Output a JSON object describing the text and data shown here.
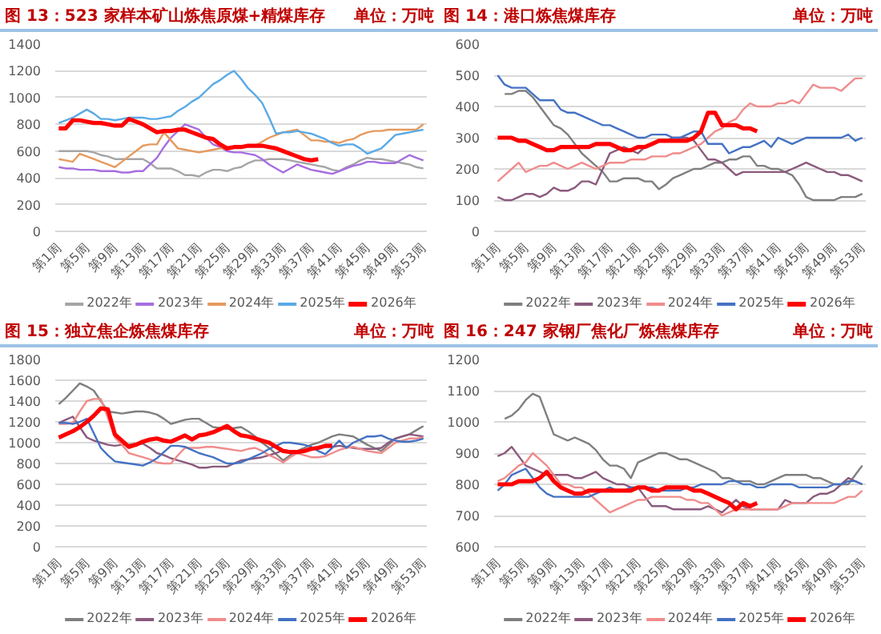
{
  "chart_data": [
    {
      "type": "line",
      "title": "图 13：523 家样本矿山炼焦原煤+精煤库存",
      "subtitle": "单位：万吨",
      "grid": "y",
      "legend": "bottom",
      "ylim": [
        0,
        1400
      ],
      "yticks": [
        0,
        200,
        400,
        600,
        800,
        1000,
        1200,
        1400
      ],
      "categories": [
        "第1周",
        null,
        null,
        null,
        "第5周",
        null,
        null,
        null,
        "第9周",
        null,
        null,
        null,
        "第13周",
        null,
        null,
        null,
        "第17周",
        null,
        null,
        null,
        "第21周",
        null,
        null,
        null,
        "第25周",
        null,
        null,
        null,
        "第29周",
        null,
        null,
        null,
        "第33周",
        null,
        null,
        null,
        "第37周",
        null,
        null,
        null,
        "第41周",
        null,
        null,
        null,
        "第45周",
        null,
        null,
        null,
        "第49周",
        null,
        null,
        null,
        "第53周"
      ],
      "series": [
        {
          "name": "2022年",
          "color": "#a5a5a5",
          "values": [
            600,
            600,
            600,
            600,
            600,
            590,
            570,
            560,
            540,
            540,
            540,
            540,
            540,
            510,
            470,
            470,
            470,
            450,
            420,
            420,
            410,
            440,
            460,
            460,
            450,
            470,
            480,
            510,
            530,
            530,
            540,
            540,
            540,
            530,
            520,
            510,
            500,
            490,
            480,
            460,
            450,
            480,
            500,
            530,
            550,
            540,
            540,
            530,
            520,
            510,
            500,
            480,
            470
          ]
        },
        {
          "name": "2023年",
          "color": "#a66ee0",
          "values": [
            480,
            470,
            470,
            460,
            460,
            460,
            450,
            450,
            450,
            440,
            440,
            450,
            450,
            500,
            550,
            630,
            700,
            750,
            800,
            780,
            760,
            700,
            650,
            630,
            600,
            590,
            590,
            580,
            570,
            540,
            500,
            470,
            440,
            470,
            500,
            480,
            460,
            450,
            440,
            430,
            450,
            470,
            490,
            500,
            520,
            520,
            510,
            510,
            510,
            540,
            570,
            550,
            530
          ]
        },
        {
          "name": "2024年",
          "color": "#e69a5e",
          "values": [
            540,
            530,
            520,
            580,
            560,
            540,
            520,
            500,
            480,
            520,
            560,
            600,
            640,
            650,
            650,
            740,
            680,
            620,
            610,
            600,
            590,
            600,
            610,
            620,
            620,
            630,
            630,
            640,
            640,
            670,
            700,
            720,
            740,
            750,
            760,
            720,
            680,
            680,
            670,
            670,
            660,
            680,
            690,
            720,
            740,
            750,
            750,
            760,
            760,
            760,
            760,
            760,
            800
          ]
        },
        {
          "name": "2025年",
          "color": "#5aaae6",
          "values": [
            810,
            830,
            850,
            880,
            910,
            880,
            840,
            840,
            830,
            840,
            850,
            850,
            850,
            840,
            840,
            850,
            860,
            900,
            930,
            970,
            1000,
            1050,
            1100,
            1130,
            1170,
            1200,
            1140,
            1070,
            1020,
            960,
            850,
            730,
            740,
            740,
            750,
            740,
            730,
            710,
            690,
            660,
            640,
            650,
            650,
            620,
            580,
            600,
            620,
            670,
            720,
            730,
            740,
            750,
            760
          ]
        },
        {
          "name": "2026年",
          "color": "#ff0000",
          "values": [
            770,
            770,
            830,
            830,
            820,
            810,
            810,
            800,
            790,
            790,
            840,
            820,
            800,
            770,
            740,
            750,
            750,
            760,
            760,
            740,
            720,
            700,
            690,
            650,
            620,
            630,
            630,
            640,
            640,
            640,
            630,
            620,
            600,
            580,
            560,
            540,
            530,
            540,
            null,
            null,
            null,
            null,
            null,
            null,
            null,
            null,
            null,
            null,
            null,
            null,
            null,
            null,
            null
          ]
        }
      ]
    },
    {
      "type": "line",
      "title": "图 14：港口炼焦煤库存",
      "subtitle": "单位：万吨",
      "grid": "y",
      "legend": "bottom",
      "ylim": [
        0,
        600
      ],
      "yticks": [
        0,
        100,
        200,
        300,
        400,
        500,
        600
      ],
      "categories": [
        "第1周",
        null,
        null,
        null,
        "第5周",
        null,
        null,
        null,
        "第9周",
        null,
        null,
        null,
        "第13周",
        null,
        null,
        null,
        "第17周",
        null,
        null,
        null,
        "第21周",
        null,
        null,
        null,
        "第25周",
        null,
        null,
        null,
        "第29周",
        null,
        null,
        null,
        "第33周",
        null,
        null,
        null,
        "第37周",
        null,
        null,
        null,
        "第41周",
        null,
        null,
        null,
        "第45周",
        null,
        null,
        null,
        "第49周",
        null,
        null,
        null,
        "第53周"
      ],
      "series": [
        {
          "name": "2022年",
          "color": "#7f7f7f",
          "values": [
            null,
            440,
            440,
            450,
            450,
            430,
            400,
            370,
            340,
            330,
            310,
            280,
            250,
            230,
            210,
            190,
            160,
            160,
            170,
            170,
            170,
            160,
            160,
            135,
            150,
            170,
            180,
            190,
            200,
            200,
            210,
            220,
            220,
            230,
            230,
            240,
            240,
            210,
            210,
            200,
            200,
            190,
            180,
            150,
            110,
            100,
            100,
            100,
            100,
            110,
            110,
            110,
            120
          ]
        },
        {
          "name": "2023年",
          "color": "#8b5a7d",
          "values": [
            110,
            100,
            100,
            110,
            120,
            120,
            110,
            120,
            140,
            130,
            130,
            140,
            160,
            160,
            150,
            200,
            250,
            260,
            270,
            260,
            250,
            270,
            280,
            290,
            290,
            300,
            300,
            300,
            290,
            260,
            230,
            230,
            220,
            200,
            180,
            190,
            190,
            190,
            190,
            190,
            190,
            190,
            200,
            210,
            220,
            210,
            200,
            190,
            190,
            180,
            180,
            170,
            160
          ]
        },
        {
          "name": "2024年",
          "color": "#f08c8c",
          "values": [
            160,
            180,
            200,
            220,
            190,
            200,
            210,
            210,
            220,
            210,
            200,
            210,
            220,
            210,
            200,
            210,
            220,
            220,
            220,
            230,
            230,
            230,
            240,
            240,
            240,
            250,
            250,
            260,
            270,
            280,
            300,
            320,
            330,
            350,
            360,
            390,
            410,
            400,
            400,
            400,
            410,
            410,
            420,
            410,
            440,
            470,
            460,
            460,
            460,
            450,
            470,
            490,
            490
          ]
        },
        {
          "name": "2025年",
          "color": "#4472c4",
          "values": [
            500,
            470,
            460,
            460,
            460,
            440,
            420,
            420,
            420,
            390,
            380,
            380,
            370,
            360,
            350,
            340,
            340,
            330,
            320,
            310,
            300,
            300,
            310,
            310,
            310,
            300,
            300,
            310,
            320,
            320,
            280,
            280,
            280,
            250,
            260,
            270,
            270,
            280,
            290,
            270,
            300,
            290,
            280,
            290,
            300,
            300,
            300,
            300,
            300,
            300,
            310,
            290,
            300
          ]
        },
        {
          "name": "2026年",
          "color": "#ff0000",
          "values": [
            300,
            300,
            300,
            290,
            290,
            280,
            270,
            260,
            260,
            270,
            270,
            270,
            270,
            270,
            280,
            280,
            280,
            270,
            260,
            260,
            270,
            270,
            280,
            290,
            290,
            290,
            290,
            290,
            300,
            320,
            380,
            380,
            340,
            340,
            340,
            330,
            330,
            320,
            null,
            null,
            null,
            null,
            null,
            null,
            null,
            null,
            null,
            null,
            null,
            null,
            null,
            null,
            null
          ]
        }
      ]
    },
    {
      "type": "line",
      "title": "图 15：独立焦企炼焦煤库存",
      "subtitle": "单位：万吨",
      "grid": "y",
      "legend": "bottom",
      "ylim": [
        0,
        1800
      ],
      "yticks": [
        0,
        200,
        400,
        600,
        800,
        1000,
        1200,
        1400,
        1600,
        1800
      ],
      "categories": [
        "第1周",
        null,
        null,
        null,
        "第5周",
        null,
        null,
        null,
        "第9周",
        null,
        null,
        null,
        "第13周",
        null,
        null,
        null,
        "第17周",
        null,
        null,
        null,
        "第21周",
        null,
        null,
        null,
        "第25周",
        null,
        null,
        null,
        "第29周",
        null,
        null,
        null,
        "第33周",
        null,
        null,
        null,
        "第37周",
        null,
        null,
        null,
        "第41周",
        null,
        null,
        null,
        "第45周",
        null,
        null,
        null,
        "第49周",
        null,
        null,
        null,
        "第53周"
      ],
      "series": [
        {
          "name": "2022年",
          "color": "#7f7f7f",
          "values": [
            1370,
            1430,
            1500,
            1570,
            1540,
            1500,
            1400,
            1300,
            1290,
            1280,
            1290,
            1300,
            1300,
            1290,
            1270,
            1230,
            1180,
            1200,
            1220,
            1230,
            1230,
            1190,
            1150,
            1140,
            1130,
            1140,
            1150,
            1110,
            1060,
            1000,
            950,
            890,
            830,
            880,
            920,
            950,
            980,
            1000,
            1030,
            1060,
            1080,
            1070,
            1060,
            1020,
            980,
            950,
            920,
            980,
            1040,
            1060,
            1080,
            1120,
            1160
          ]
        },
        {
          "name": "2023年",
          "color": "#8b5a7d",
          "values": [
            1190,
            1220,
            1250,
            1150,
            1050,
            1020,
            1000,
            980,
            970,
            980,
            980,
            990,
            990,
            950,
            900,
            880,
            850,
            830,
            810,
            790,
            760,
            760,
            770,
            770,
            770,
            800,
            830,
            840,
            850,
            860,
            880,
            900,
            930,
            920,
            920,
            930,
            950,
            950,
            960,
            960,
            970,
            960,
            950,
            940,
            940,
            940,
            950,
            1000,
            1040,
            1060,
            1080,
            1070,
            1060
          ]
        },
        {
          "name": "2024年",
          "color": "#f08c8c",
          "values": [
            1180,
            1180,
            1190,
            1300,
            1400,
            1420,
            1420,
            1240,
            1050,
            980,
            900,
            880,
            860,
            840,
            810,
            800,
            800,
            880,
            950,
            950,
            950,
            960,
            960,
            950,
            940,
            930,
            920,
            940,
            950,
            920,
            880,
            850,
            810,
            860,
            900,
            880,
            860,
            860,
            870,
            900,
            930,
            950,
            960,
            940,
            920,
            910,
            900,
            950,
            1000,
            1020,
            1040,
            1040,
            1050
          ]
        },
        {
          "name": "2025年",
          "color": "#4472c4",
          "values": [
            1190,
            1190,
            1180,
            1200,
            1230,
            1090,
            950,
            880,
            820,
            810,
            800,
            790,
            780,
            810,
            850,
            910,
            970,
            970,
            960,
            930,
            900,
            880,
            860,
            830,
            800,
            800,
            810,
            840,
            870,
            900,
            940,
            970,
            1000,
            1000,
            990,
            980,
            960,
            920,
            890,
            950,
            1020,
            950,
            1000,
            1030,
            1060,
            1060,
            1070,
            1040,
            1020,
            1010,
            1010,
            1020,
            1040
          ]
        },
        {
          "name": "2026年",
          "color": "#ff0000",
          "values": [
            1050,
            1080,
            1110,
            1150,
            1200,
            1260,
            1330,
            1320,
            1080,
            1020,
            960,
            980,
            1010,
            1030,
            1040,
            1020,
            1010,
            1040,
            1070,
            1030,
            1070,
            1080,
            1100,
            1130,
            1160,
            1110,
            1070,
            1060,
            1040,
            1020,
            1000,
            960,
            920,
            910,
            910,
            920,
            940,
            950,
            970,
            970,
            null,
            null,
            null,
            null,
            null,
            null,
            null,
            null,
            null,
            null,
            null,
            null,
            null
          ]
        }
      ]
    },
    {
      "type": "line",
      "title": "图 16：247 家钢厂焦化厂炼焦煤库存",
      "subtitle": "单位：万吨",
      "grid": "y",
      "legend": "bottom",
      "ylim": [
        600,
        1200
      ],
      "yticks": [
        600,
        700,
        800,
        900,
        1000,
        1100,
        1200
      ],
      "categories": [
        "第1周",
        null,
        null,
        null,
        "第5周",
        null,
        null,
        null,
        "第9周",
        null,
        null,
        null,
        "第13周",
        null,
        null,
        null,
        "第17周",
        null,
        null,
        null,
        "第21周",
        null,
        null,
        null,
        "第25周",
        null,
        null,
        null,
        "第29周",
        null,
        null,
        null,
        "第33周",
        null,
        null,
        null,
        "第37周",
        null,
        null,
        null,
        "第41周",
        null,
        null,
        null,
        "第45周",
        null,
        null,
        null,
        "第49周",
        null,
        null,
        null,
        "第53周"
      ],
      "series": [
        {
          "name": "2022年",
          "color": "#7f7f7f",
          "values": [
            null,
            1010,
            1020,
            1040,
            1070,
            1090,
            1080,
            1020,
            960,
            950,
            940,
            950,
            940,
            930,
            910,
            880,
            860,
            860,
            850,
            820,
            870,
            880,
            890,
            900,
            900,
            890,
            880,
            880,
            870,
            860,
            850,
            840,
            820,
            820,
            810,
            810,
            810,
            800,
            800,
            810,
            820,
            830,
            830,
            830,
            830,
            820,
            820,
            810,
            800,
            800,
            800,
            830,
            860
          ]
        },
        {
          "name": "2023年",
          "color": "#8b5a7d",
          "values": [
            890,
            900,
            920,
            890,
            860,
            850,
            840,
            830,
            830,
            830,
            830,
            820,
            820,
            830,
            840,
            820,
            810,
            800,
            800,
            790,
            790,
            760,
            730,
            730,
            730,
            720,
            720,
            720,
            720,
            720,
            730,
            720,
            710,
            730,
            750,
            730,
            720,
            720,
            720,
            720,
            720,
            750,
            740,
            740,
            740,
            760,
            770,
            770,
            780,
            800,
            820,
            810,
            800
          ]
        },
        {
          "name": "2024年",
          "color": "#f08c8c",
          "values": [
            810,
            820,
            840,
            860,
            870,
            900,
            880,
            860,
            830,
            800,
            800,
            790,
            790,
            770,
            750,
            730,
            710,
            720,
            730,
            740,
            750,
            750,
            760,
            760,
            760,
            760,
            760,
            750,
            750,
            740,
            740,
            720,
            700,
            710,
            720,
            720,
            720,
            720,
            720,
            720,
            720,
            730,
            740,
            740,
            740,
            740,
            740,
            740,
            740,
            750,
            760,
            760,
            780
          ]
        },
        {
          "name": "2025年",
          "color": "#4472c4",
          "values": [
            780,
            800,
            830,
            840,
            850,
            820,
            790,
            770,
            760,
            760,
            760,
            760,
            760,
            760,
            770,
            780,
            790,
            780,
            780,
            790,
            790,
            790,
            790,
            780,
            780,
            780,
            780,
            790,
            790,
            800,
            800,
            800,
            800,
            810,
            810,
            800,
            800,
            790,
            790,
            800,
            800,
            800,
            800,
            790,
            790,
            790,
            790,
            790,
            800,
            800,
            810,
            810,
            800
          ]
        },
        {
          "name": "2026年",
          "color": "#ff0000",
          "values": [
            800,
            800,
            800,
            810,
            810,
            810,
            820,
            840,
            810,
            790,
            780,
            770,
            770,
            780,
            780,
            780,
            780,
            780,
            780,
            780,
            790,
            790,
            780,
            780,
            790,
            790,
            790,
            790,
            780,
            780,
            770,
            760,
            750,
            740,
            720,
            740,
            730,
            740,
            null,
            null,
            null,
            null,
            null,
            null,
            null,
            null,
            null,
            null,
            null,
            null,
            null,
            null,
            null
          ]
        }
      ]
    }
  ]
}
